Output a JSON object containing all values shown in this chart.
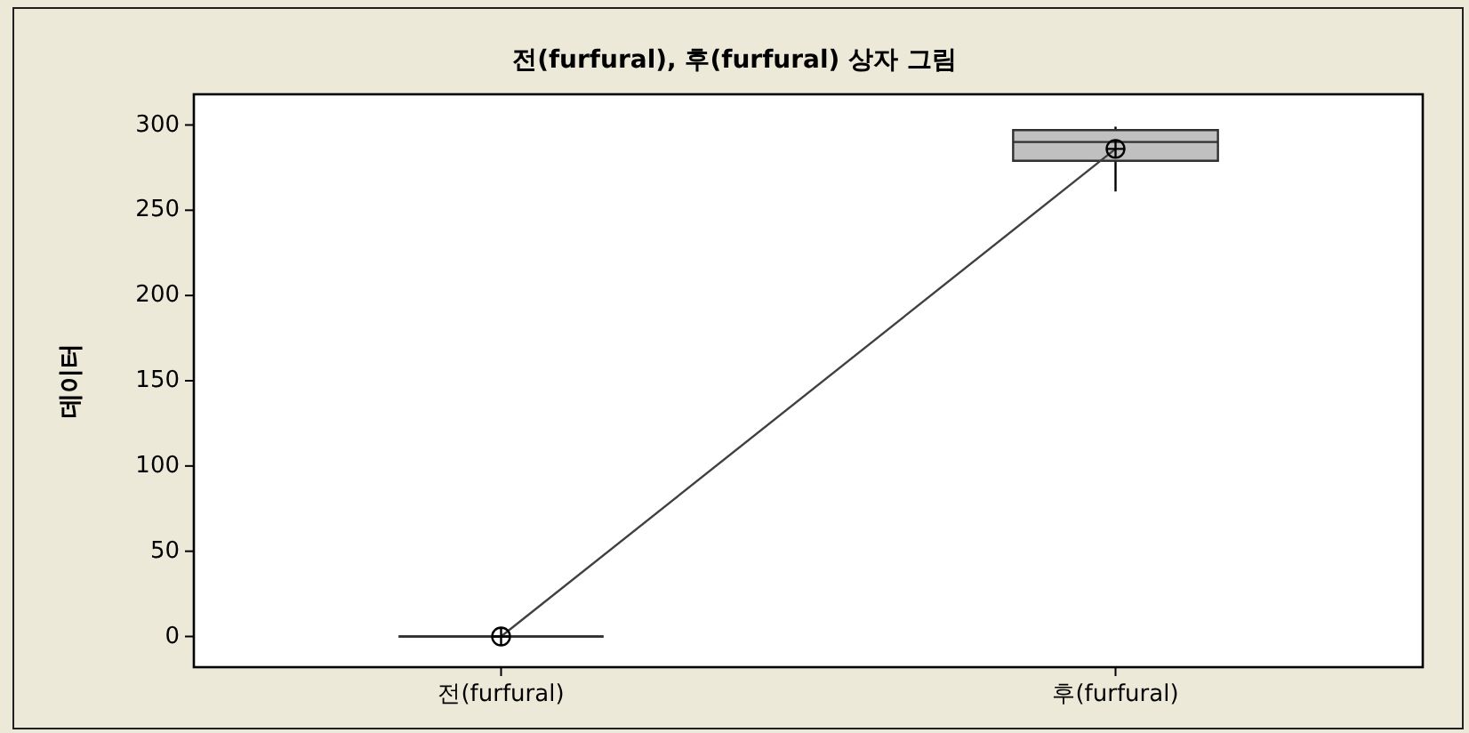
{
  "chart_data": {
    "type": "box",
    "title": "전(furfural), 후(furfural) 상자 그림",
    "ylabel": "데이터",
    "categories": [
      "전(furfural)",
      "후(furfural)"
    ],
    "series": [
      {
        "type": "box",
        "colors": [
          "#303030",
          "#c0c0c0"
        ],
        "boxes": [
          {
            "low": 0,
            "q1": 0,
            "median": 0,
            "q3": 0,
            "high": 0,
            "mean": 0
          },
          {
            "low": 261,
            "q1": 279,
            "median": 290,
            "q3": 297,
            "high": 299,
            "mean": 286
          }
        ]
      },
      {
        "type": "line",
        "color": "#404040",
        "values": [
          0,
          286
        ]
      }
    ],
    "ylim": [
      -18,
      318
    ],
    "yticks": [
      0,
      50,
      100,
      150,
      200,
      250,
      300
    ],
    "grid": false
  }
}
